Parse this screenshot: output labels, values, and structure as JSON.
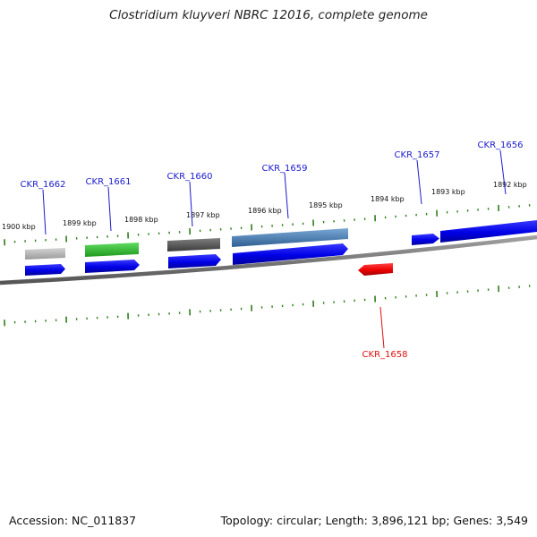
{
  "title": "Clostridium kluyveri NBRC 12016, complete genome",
  "footer": {
    "accession": "Accession: NC_011837",
    "summary": "Topology: circular; Length: 3,896,121 bp; Genes: 3,549"
  },
  "colors": {
    "forward_cds": "#0000ee",
    "reverse_cds": "#ee0000",
    "tick": "#2e7d1a",
    "backbone": "#7a7a7a",
    "label_forward": "#1a1acc",
    "label_reverse": "#dd1111"
  },
  "scale_labels": [
    "1900 kbp",
    "1899 kbp",
    "1898 kbp",
    "1897 kbp",
    "1896 kbp",
    "1895 kbp",
    "1894 kbp",
    "1893 kbp",
    "1892 kbp"
  ],
  "genes": [
    {
      "name": "CKR_1662",
      "color": "#0000ee",
      "feature_color": "#b0b0b0",
      "strand": "forward"
    },
    {
      "name": "CKR_1661",
      "color": "#0000ee",
      "feature_color": "#33bb33",
      "strand": "forward"
    },
    {
      "name": "CKR_1660",
      "color": "#0000ee",
      "feature_color": "#555555",
      "strand": "forward"
    },
    {
      "name": "CKR_1659",
      "color": "#0000ee",
      "feature_color": "#4a7fb5",
      "strand": "forward"
    },
    {
      "name": "CKR_1658",
      "color": "#ee0000",
      "feature_color": "",
      "strand": "reverse"
    },
    {
      "name": "CKR_1657",
      "color": "#0000ee",
      "feature_color": "",
      "strand": "forward"
    },
    {
      "name": "CKR_1656",
      "color": "#0000ee",
      "feature_color": "",
      "strand": "forward"
    }
  ]
}
